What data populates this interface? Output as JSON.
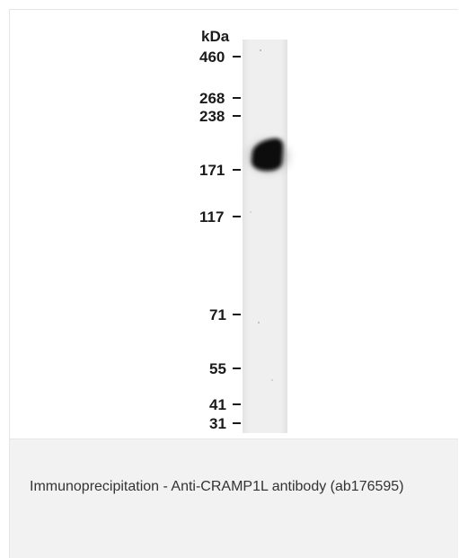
{
  "blot": {
    "unit_label": "kDa",
    "markers": [
      {
        "label": "460",
        "kda": 460
      },
      {
        "label": "268",
        "kda": 268
      },
      {
        "label": "238",
        "kda": 238
      },
      {
        "label": "171",
        "kda": 171
      },
      {
        "label": "117",
        "kda": 117
      },
      {
        "label": "71",
        "kda": 71
      },
      {
        "label": "55",
        "kda": 55
      },
      {
        "label": "41",
        "kda": 41
      },
      {
        "label": "31",
        "kda": 31
      }
    ]
  },
  "caption": {
    "text": "Immunoprecipitation - Anti-CRAMP1L antibody (ab176595)"
  }
}
